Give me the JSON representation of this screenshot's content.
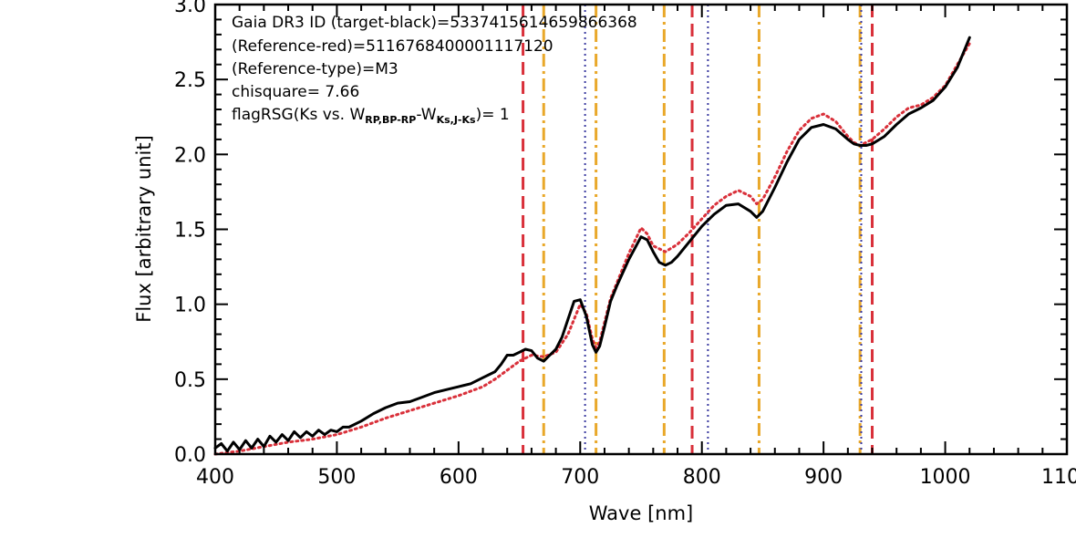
{
  "chart_data": {
    "type": "line",
    "xlabel": "Wave [nm]",
    "ylabel": "Flux [arbitrary unit]",
    "xlim": [
      400,
      1100
    ],
    "ylim": [
      0.0,
      3.0
    ],
    "x_ticks": [
      "400",
      "500",
      "600",
      "700",
      "800",
      "900",
      "1000",
      "1100"
    ],
    "y_ticks": [
      "0.0",
      "0.5",
      "1.0",
      "1.5",
      "2.0",
      "2.5",
      "3.0"
    ],
    "grid": false,
    "annotations": {
      "line1": "Gaia DR3 ID (target-black)=5337415614659866368",
      "line2": "(Reference-red)=5116768400001117120",
      "line3": "(Reference-type)=M3",
      "line4": "chisquare= 7.66",
      "line5_prefix": "flagRSG(Ks vs. W",
      "line5_sub1": "RP,BP-RP",
      "line5_mid": "-W",
      "line5_sub2": "Ks,J-Ks",
      "line5_suffix": ")= 1"
    },
    "series": [
      {
        "color": "#000000",
        "style": "solid",
        "x": [
          400,
          405,
          410,
          415,
          420,
          425,
          430,
          435,
          440,
          445,
          450,
          455,
          460,
          465,
          470,
          475,
          480,
          485,
          490,
          495,
          500,
          505,
          510,
          520,
          530,
          540,
          550,
          560,
          570,
          580,
          590,
          600,
          610,
          620,
          630,
          635,
          640,
          645,
          650,
          655,
          660,
          665,
          670,
          675,
          680,
          685,
          690,
          695,
          700,
          705,
          710,
          713,
          716,
          720,
          725,
          730,
          740,
          750,
          755,
          760,
          765,
          770,
          775,
          780,
          790,
          800,
          810,
          820,
          830,
          840,
          845,
          850,
          860,
          870,
          880,
          890,
          900,
          910,
          920,
          925,
          930,
          935,
          940,
          950,
          960,
          970,
          980,
          990,
          1000,
          1010,
          1020
        ],
        "y": [
          0.04,
          0.07,
          0.02,
          0.08,
          0.03,
          0.09,
          0.04,
          0.1,
          0.05,
          0.12,
          0.08,
          0.13,
          0.09,
          0.15,
          0.11,
          0.15,
          0.12,
          0.16,
          0.13,
          0.16,
          0.15,
          0.18,
          0.18,
          0.22,
          0.27,
          0.31,
          0.34,
          0.35,
          0.38,
          0.41,
          0.43,
          0.45,
          0.47,
          0.51,
          0.55,
          0.6,
          0.66,
          0.66,
          0.68,
          0.7,
          0.69,
          0.64,
          0.62,
          0.66,
          0.7,
          0.78,
          0.9,
          1.02,
          1.03,
          0.92,
          0.73,
          0.68,
          0.72,
          0.85,
          1.02,
          1.12,
          1.3,
          1.45,
          1.43,
          1.35,
          1.28,
          1.26,
          1.28,
          1.32,
          1.42,
          1.52,
          1.6,
          1.66,
          1.67,
          1.62,
          1.58,
          1.62,
          1.78,
          1.95,
          2.1,
          2.18,
          2.2,
          2.17,
          2.1,
          2.07,
          2.06,
          2.06,
          2.07,
          2.12,
          2.2,
          2.27,
          2.31,
          2.36,
          2.45,
          2.58,
          2.78
        ]
      },
      {
        "color": "#d9303a",
        "style": "dotted",
        "x": [
          400,
          420,
          440,
          460,
          480,
          500,
          520,
          540,
          560,
          580,
          600,
          620,
          630,
          640,
          650,
          660,
          670,
          680,
          690,
          700,
          705,
          710,
          713,
          716,
          720,
          725,
          730,
          740,
          750,
          755,
          760,
          770,
          780,
          790,
          800,
          810,
          820,
          830,
          840,
          845,
          850,
          860,
          870,
          880,
          890,
          900,
          910,
          920,
          925,
          930,
          935,
          940,
          950,
          960,
          970,
          980,
          990,
          1000,
          1010,
          1020
        ],
        "y": [
          0.0,
          0.02,
          0.05,
          0.08,
          0.1,
          0.13,
          0.18,
          0.24,
          0.29,
          0.34,
          0.39,
          0.45,
          0.5,
          0.56,
          0.62,
          0.66,
          0.65,
          0.68,
          0.8,
          1.0,
          0.94,
          0.77,
          0.71,
          0.75,
          0.88,
          1.04,
          1.14,
          1.34,
          1.51,
          1.47,
          1.39,
          1.35,
          1.4,
          1.48,
          1.57,
          1.66,
          1.72,
          1.76,
          1.72,
          1.67,
          1.7,
          1.85,
          2.02,
          2.16,
          2.24,
          2.27,
          2.22,
          2.12,
          2.08,
          2.06,
          2.08,
          2.1,
          2.17,
          2.25,
          2.31,
          2.33,
          2.38,
          2.46,
          2.6,
          2.74
        ]
      }
    ],
    "vertical_lines": [
      {
        "x": 653,
        "color": "#d9303a",
        "style": "dashed"
      },
      {
        "x": 670,
        "color": "#e9a82a",
        "style": "dashdot"
      },
      {
        "x": 704,
        "color": "#3a3aa0",
        "style": "dotted"
      },
      {
        "x": 713,
        "color": "#e9a82a",
        "style": "dashdot"
      },
      {
        "x": 769,
        "color": "#e9a82a",
        "style": "dashdot"
      },
      {
        "x": 792,
        "color": "#d9303a",
        "style": "dashed"
      },
      {
        "x": 805,
        "color": "#3a3aa0",
        "style": "dotted"
      },
      {
        "x": 847,
        "color": "#e9a82a",
        "style": "dashdot"
      },
      {
        "x": 930,
        "color": "#e9a82a",
        "style": "dashdot"
      },
      {
        "x": 931,
        "color": "#3a3aa0",
        "style": "dotted"
      },
      {
        "x": 940,
        "color": "#d9303a",
        "style": "dashed"
      }
    ]
  }
}
